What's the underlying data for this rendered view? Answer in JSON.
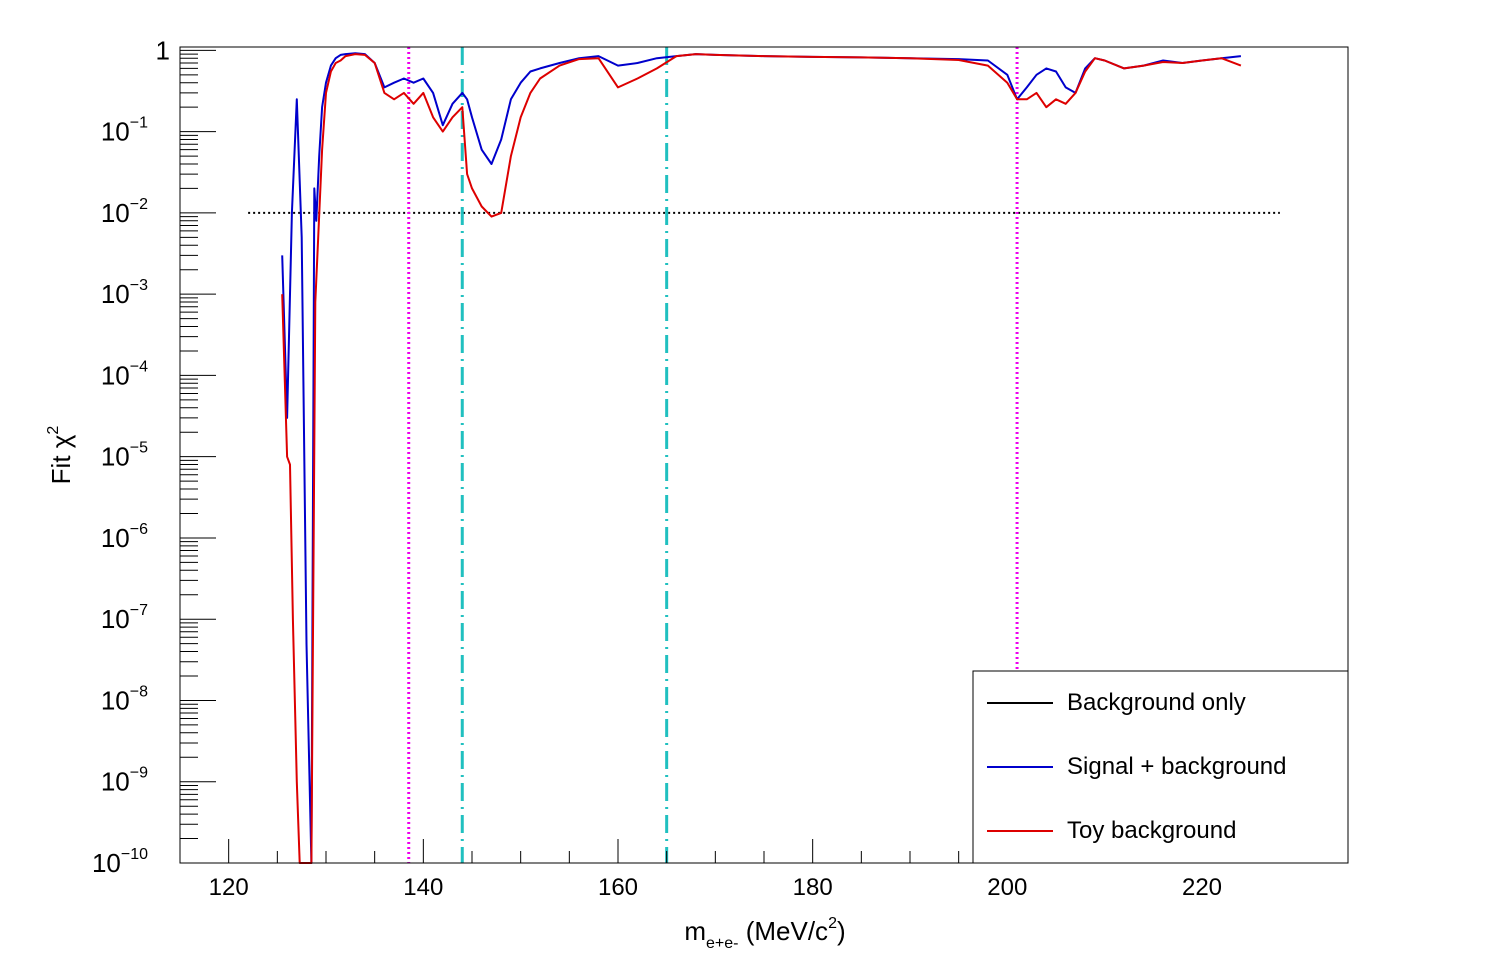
{
  "chart_data": {
    "type": "line",
    "title": "",
    "xlabel": {
      "main": "m",
      "sub": "e+e-",
      "rest": " (MeV/c",
      "sup": "2",
      "end": ")"
    },
    "ylabel": {
      "main": "Fit χ",
      "sup": "2"
    },
    "xlim": [
      115,
      235
    ],
    "ylim": [
      1e-10,
      1.1
    ],
    "yscale": "log",
    "grid": false,
    "legend_position": "bottom-right",
    "x_ticks": [
      120,
      140,
      160,
      180,
      200,
      220
    ],
    "y_ticks": [
      {
        "base": "1",
        "exp": "",
        "value": 1
      },
      {
        "base": "10",
        "exp": "−1",
        "value": 0.1
      },
      {
        "base": "10",
        "exp": "−2",
        "value": 0.01
      },
      {
        "base": "10",
        "exp": "−3",
        "value": 0.001
      },
      {
        "base": "10",
        "exp": "−4",
        "value": 0.0001
      },
      {
        "base": "10",
        "exp": "−5",
        "value": 1e-05
      },
      {
        "base": "10",
        "exp": "−6",
        "value": 1e-06
      },
      {
        "base": "10",
        "exp": "−7",
        "value": 1e-07
      },
      {
        "base": "10",
        "exp": "−8",
        "value": 1e-08
      },
      {
        "base": "10",
        "exp": "−9",
        "value": 1e-09
      },
      {
        "base": "10",
        "exp": "−10",
        "value": 1e-10
      }
    ],
    "series": [
      {
        "name": "Background only",
        "color": "#000000",
        "x": [],
        "y": []
      },
      {
        "name": "Signal + background",
        "color": "#0000cc",
        "x": [
          125.5,
          126.0,
          126.5,
          127.0,
          127.5,
          128.0,
          128.5,
          128.8,
          129.0,
          129.3,
          129.6,
          130.0,
          130.5,
          131.0,
          131.5,
          132.0,
          133.0,
          134.0,
          135.0,
          136.0,
          137.0,
          138.0,
          139.0,
          140.0,
          141.0,
          142.0,
          143.0,
          144.0,
          144.5,
          145.0,
          146.0,
          147.0,
          148.0,
          149.0,
          150.0,
          151.0,
          152.0,
          154.0,
          156.0,
          158.0,
          160.0,
          162.0,
          164.0,
          166.0,
          168.0,
          170.0,
          175.0,
          180.0,
          185.0,
          190.0,
          195.0,
          198.0,
          200.0,
          201.0,
          202.0,
          203.0,
          204.0,
          205.0,
          206.0,
          207.0,
          208.0,
          209.0,
          210.0,
          212.0,
          214.0,
          216.0,
          218.0,
          220.0,
          222.0,
          224.0
        ],
        "y": [
          0.003,
          3e-05,
          0.01,
          0.25,
          0.005,
          5e-08,
          1e-10,
          0.02,
          0.008,
          0.05,
          0.2,
          0.4,
          0.65,
          0.8,
          0.88,
          0.9,
          0.92,
          0.9,
          0.7,
          0.35,
          0.4,
          0.45,
          0.4,
          0.45,
          0.3,
          0.12,
          0.22,
          0.3,
          0.25,
          0.15,
          0.06,
          0.04,
          0.08,
          0.25,
          0.4,
          0.55,
          0.6,
          0.7,
          0.8,
          0.85,
          0.65,
          0.7,
          0.8,
          0.85,
          0.9,
          0.88,
          0.85,
          0.83,
          0.82,
          0.8,
          0.78,
          0.75,
          0.5,
          0.25,
          0.35,
          0.5,
          0.6,
          0.55,
          0.35,
          0.3,
          0.6,
          0.8,
          0.75,
          0.6,
          0.65,
          0.75,
          0.7,
          0.75,
          0.8,
          0.85
        ]
      },
      {
        "name": "Toy background",
        "color": "#dd0000",
        "x": [
          125.5,
          126.0,
          126.3,
          126.6,
          127.0,
          127.3,
          127.6,
          128.0,
          128.5,
          128.9,
          129.2,
          129.6,
          130.0,
          130.5,
          131.0,
          131.5,
          132.0,
          133.0,
          134.0,
          135.0,
          136.0,
          137.0,
          138.0,
          139.0,
          140.0,
          141.0,
          142.0,
          143.0,
          144.0,
          144.5,
          145.0,
          146.0,
          147.0,
          148.0,
          149.0,
          150.0,
          151.0,
          152.0,
          154.0,
          156.0,
          158.0,
          160.0,
          162.0,
          164.0,
          166.0,
          168.0,
          170.0,
          175.0,
          180.0,
          185.0,
          190.0,
          195.0,
          198.0,
          200.0,
          201.0,
          202.0,
          203.0,
          204.0,
          205.0,
          206.0,
          207.0,
          208.0,
          209.0,
          210.0,
          212.0,
          214.0,
          216.0,
          218.0,
          220.0,
          222.0,
          224.0
        ],
        "y": [
          0.001,
          1e-05,
          8e-06,
          1e-07,
          1e-09,
          1e-10,
          1e-10,
          1e-10,
          1e-10,
          0.0008,
          0.005,
          0.06,
          0.3,
          0.55,
          0.7,
          0.75,
          0.85,
          0.9,
          0.88,
          0.7,
          0.3,
          0.25,
          0.3,
          0.22,
          0.3,
          0.15,
          0.1,
          0.15,
          0.2,
          0.03,
          0.02,
          0.012,
          0.009,
          0.01,
          0.05,
          0.15,
          0.3,
          0.45,
          0.65,
          0.78,
          0.8,
          0.35,
          0.45,
          0.6,
          0.85,
          0.9,
          0.88,
          0.85,
          0.83,
          0.82,
          0.8,
          0.76,
          0.65,
          0.4,
          0.25,
          0.25,
          0.3,
          0.2,
          0.25,
          0.22,
          0.3,
          0.55,
          0.8,
          0.75,
          0.6,
          0.65,
          0.72,
          0.7,
          0.75,
          0.8,
          0.65
        ]
      }
    ],
    "reference_lines": [
      {
        "kind": "horizontal",
        "value": 0.01,
        "x_from": 122,
        "x_to": 228,
        "style": "dotted",
        "color": "#000000"
      },
      {
        "kind": "vertical",
        "value": 138.5,
        "style": "dotted",
        "color": "#ee00ee"
      },
      {
        "kind": "vertical",
        "value": 201.0,
        "style": "dotted",
        "color": "#ee00ee"
      },
      {
        "kind": "vertical",
        "value": 144.0,
        "style": "dashdot",
        "color": "#20c0c0"
      },
      {
        "kind": "vertical",
        "value": 165.0,
        "style": "dashdot",
        "color": "#20c0c0"
      }
    ]
  }
}
